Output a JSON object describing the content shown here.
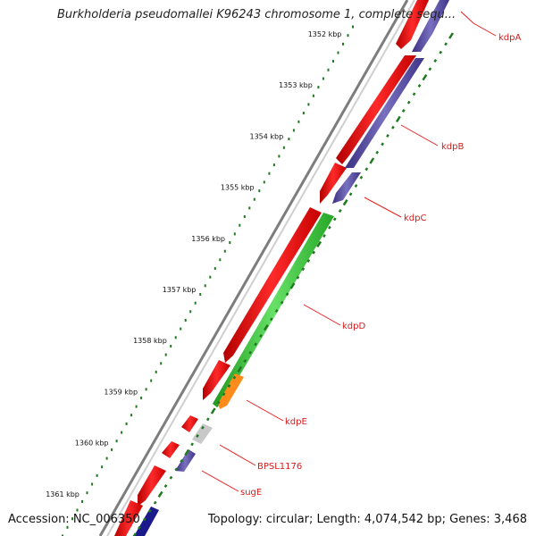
{
  "title": "Burkholderia pseudomallei K96243 chromosome 1, complete sequ...",
  "footer": {
    "accession": "Accession: NC_006350",
    "summary": "Topology: circular; Length: 4,074,542 bp; Genes: 3,468"
  },
  "ruler": {
    "labels": [
      "1352 kbp",
      "1353 kbp",
      "1354 kbp",
      "1355 kbp",
      "1356 kbp",
      "1357 kbp",
      "1358 kbp",
      "1359 kbp",
      "1360 kbp",
      "1361 kbp"
    ]
  },
  "genes": [
    {
      "name": "kdpA"
    },
    {
      "name": "kdpB"
    },
    {
      "name": "kdpC"
    },
    {
      "name": "kdpD"
    },
    {
      "name": "kdpE"
    },
    {
      "name": "BPSL1176"
    },
    {
      "name": "sugE"
    }
  ],
  "colors": {
    "backbone": "#8a8a8a",
    "forward_cds": "#ee1111",
    "reverse_cds": "#4a3f9a",
    "reverse_cds_alt": "#6a5fb0",
    "green_track": "#33cc33",
    "orange_track": "#ff8c1a",
    "gray_feature": "#c8c8c8",
    "dark_blue": "#1a1a8c",
    "tick_color": "#1f7a1f",
    "label_color": "#d61a1a"
  }
}
